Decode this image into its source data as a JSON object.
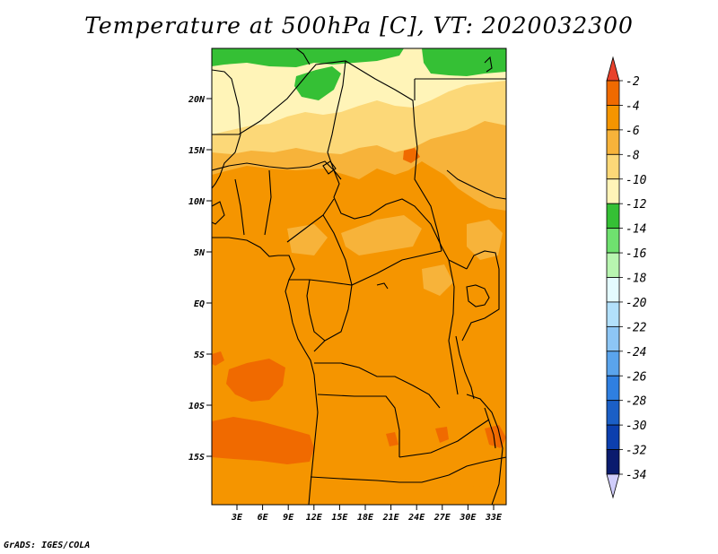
{
  "title": "Temperature at 500hPa [C], VT: 2020032300",
  "credit": "GrADS: IGES/COLA",
  "map": {
    "lon_labels": [
      "3E",
      "6E",
      "9E",
      "12E",
      "15E",
      "18E",
      "21E",
      "24E",
      "27E",
      "30E",
      "33E"
    ],
    "lat_labels": [
      "20N",
      "15N",
      "10N",
      "5N",
      "EQ",
      "5S",
      "10S",
      "15S"
    ]
  },
  "colorbar": {
    "labels": [
      "-2",
      "-4",
      "-6",
      "-8",
      "-10",
      "-12",
      "-14",
      "-16",
      "-18",
      "-20",
      "-22",
      "-24",
      "-26",
      "-28",
      "-30",
      "-32",
      "-34"
    ],
    "colors": [
      "#e8412b",
      "#f06a00",
      "#f59500",
      "#f7b33a",
      "#fcd878",
      "#fff4b8",
      "#35c035",
      "#6fe06f",
      "#b8f5b0",
      "#e4fbff",
      "#b2e0fb",
      "#8dc6f5",
      "#5aa4ec",
      "#2f7fe0",
      "#1b5fc6",
      "#0c3fae",
      "#0a1b6e",
      "#d0cdfb"
    ]
  },
  "colors": {
    "minus4": "#f06a00",
    "minus6": "#f59500",
    "minus8": "#f7b33a",
    "minus10": "#fcd878",
    "minus12": "#fff4b8",
    "minus14": "#35c035"
  }
}
